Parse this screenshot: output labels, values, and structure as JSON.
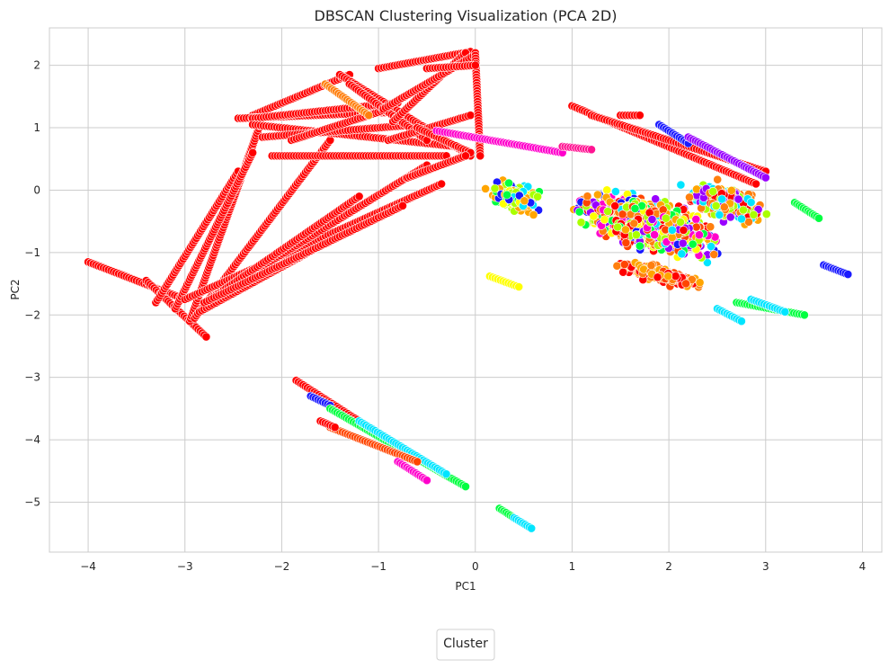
{
  "chart_data": {
    "type": "scatter",
    "title": "DBSCAN Clustering Visualization (PCA 2D)",
    "xlabel": "PC1",
    "ylabel": "PC2",
    "xlim": [
      -4.4,
      4.2
    ],
    "ylim": [
      -5.8,
      2.6
    ],
    "xticks": [
      -4,
      -3,
      -2,
      -1,
      0,
      1,
      2,
      3,
      4
    ],
    "yticks": [
      -5,
      -4,
      -3,
      -2,
      -1,
      0,
      1,
      2
    ],
    "grid": true,
    "legend": {
      "title": "Cluster",
      "placement": "bottom-center, outside plot"
    },
    "colors": {
      "red": "#ff0000",
      "orange_red": "#ff4500",
      "orange": "#ff7f0e",
      "amber": "#ffa500",
      "yellow": "#ffff00",
      "lime": "#aaff00",
      "green": "#00ff40",
      "cyan": "#00e5ff",
      "blue": "#1a1aff",
      "violet": "#9900ff",
      "magenta": "#ff00cc",
      "pink": "#ff1493"
    },
    "segments": [
      {
        "color": "red",
        "from": [
          -4.0,
          -1.15
        ],
        "to": [
          -3.0,
          -1.75
        ]
      },
      {
        "color": "red",
        "from": [
          -3.4,
          -1.45
        ],
        "to": [
          -2.78,
          -2.35
        ]
      },
      {
        "color": "red",
        "from": [
          -3.3,
          -1.8
        ],
        "to": [
          -2.45,
          0.3
        ]
      },
      {
        "color": "red",
        "from": [
          -2.95,
          -2.1
        ],
        "to": [
          -2.2,
          1.15
        ]
      },
      {
        "color": "red",
        "from": [
          -3.1,
          -1.9
        ],
        "to": [
          -2.3,
          0.6
        ]
      },
      {
        "color": "red",
        "from": [
          -2.9,
          -2.05
        ],
        "to": [
          -1.5,
          0.8
        ]
      },
      {
        "color": "red",
        "from": [
          -2.85,
          -1.95
        ],
        "to": [
          -0.9,
          -0.3
        ]
      },
      {
        "color": "red",
        "from": [
          -3.0,
          -1.75
        ],
        "to": [
          -0.35,
          0.1
        ]
      },
      {
        "color": "red",
        "from": [
          -2.7,
          -1.7
        ],
        "to": [
          -0.5,
          0.4
        ]
      },
      {
        "color": "red",
        "from": [
          -2.6,
          -1.6
        ],
        "to": [
          -1.2,
          -0.1
        ]
      },
      {
        "color": "red",
        "from": [
          -2.8,
          -1.8
        ],
        "to": [
          -0.75,
          -0.25
        ]
      },
      {
        "color": "red",
        "from": [
          -2.3,
          1.2
        ],
        "to": [
          -1.3,
          1.85
        ]
      },
      {
        "color": "red",
        "from": [
          -2.45,
          1.15
        ],
        "to": [
          -0.85,
          1.25
        ]
      },
      {
        "color": "red",
        "from": [
          -2.3,
          1.15
        ],
        "to": [
          -0.8,
          1.4
        ]
      },
      {
        "color": "red",
        "from": [
          -2.1,
          0.55
        ],
        "to": [
          -0.3,
          0.55
        ]
      },
      {
        "color": "red",
        "from": [
          -2.3,
          1.05
        ],
        "to": [
          -0.2,
          0.7
        ]
      },
      {
        "color": "red",
        "from": [
          -2.2,
          0.85
        ],
        "to": [
          -0.6,
          1.05
        ]
      },
      {
        "color": "red",
        "from": [
          -1.9,
          0.8
        ],
        "to": [
          -0.9,
          1.3
        ]
      },
      {
        "color": "red",
        "from": [
          -1.4,
          1.85
        ],
        "to": [
          -0.05,
          0.55
        ]
      },
      {
        "color": "red",
        "from": [
          -1.3,
          1.7
        ],
        "to": [
          -0.5,
          0.8
        ]
      },
      {
        "color": "red",
        "from": [
          -1.0,
          1.95
        ],
        "to": [
          -0.05,
          2.22
        ]
      },
      {
        "color": "red",
        "from": [
          -0.85,
          1.1
        ],
        "to": [
          -0.1,
          2.2
        ]
      },
      {
        "color": "red",
        "from": [
          -0.95,
          1.3
        ],
        "to": [
          -0.02,
          2.15
        ]
      },
      {
        "color": "red",
        "from": [
          -0.9,
          0.8
        ],
        "to": [
          -0.05,
          1.2
        ]
      },
      {
        "color": "red",
        "from": [
          0.0,
          2.2
        ],
        "to": [
          0.05,
          0.55
        ]
      },
      {
        "color": "red",
        "from": [
          -0.6,
          1.0
        ],
        "to": [
          -0.05,
          0.6
        ]
      },
      {
        "color": "red",
        "from": [
          -0.5,
          1.95
        ],
        "to": [
          0.0,
          2.0
        ]
      },
      {
        "color": "red",
        "from": [
          -0.7,
          0.2
        ],
        "to": [
          -0.1,
          0.55
        ]
      },
      {
        "color": "orange",
        "from": [
          -1.55,
          1.7
        ],
        "to": [
          -1.1,
          1.2
        ]
      },
      {
        "color": "red",
        "from": [
          1.0,
          1.35
        ],
        "to": [
          2.9,
          0.1
        ]
      },
      {
        "color": "red",
        "from": [
          1.2,
          1.2
        ],
        "to": [
          3.0,
          0.3
        ]
      },
      {
        "color": "red",
        "from": [
          1.5,
          1.2
        ],
        "to": [
          1.7,
          1.2
        ]
      },
      {
        "color": "blue",
        "from": [
          1.9,
          1.05
        ],
        "to": [
          2.2,
          0.75
        ]
      },
      {
        "color": "violet",
        "from": [
          2.2,
          0.85
        ],
        "to": [
          3.0,
          0.2
        ]
      },
      {
        "color": "magenta",
        "from": [
          -0.4,
          0.95
        ],
        "to": [
          0.9,
          0.6
        ]
      },
      {
        "color": "pink",
        "from": [
          0.9,
          0.7
        ],
        "to": [
          1.2,
          0.65
        ]
      },
      {
        "color": "green",
        "from": [
          3.3,
          -0.2
        ],
        "to": [
          3.55,
          -0.45
        ]
      },
      {
        "color": "blue",
        "from": [
          3.6,
          -1.2
        ],
        "to": [
          3.85,
          -1.35
        ]
      },
      {
        "color": "green",
        "from": [
          2.7,
          -1.8
        ],
        "to": [
          3.4,
          -2.0
        ]
      },
      {
        "color": "cyan",
        "from": [
          2.5,
          -1.9
        ],
        "to": [
          2.75,
          -2.1
        ]
      },
      {
        "color": "cyan",
        "from": [
          2.85,
          -1.75
        ],
        "to": [
          3.2,
          -1.95
        ]
      },
      {
        "color": "yellow",
        "from": [
          0.15,
          -1.38
        ],
        "to": [
          0.45,
          -1.55
        ]
      },
      {
        "color": "red",
        "from": [
          -1.85,
          -3.05
        ],
        "to": [
          -0.55,
          -4.35
        ]
      },
      {
        "color": "blue",
        "from": [
          -1.7,
          -3.3
        ],
        "to": [
          -1.5,
          -3.45
        ]
      },
      {
        "color": "green",
        "from": [
          -1.5,
          -3.5
        ],
        "to": [
          -0.1,
          -4.75
        ]
      },
      {
        "color": "cyan",
        "from": [
          -1.2,
          -3.7
        ],
        "to": [
          -0.3,
          -4.55
        ]
      },
      {
        "color": "orange_red",
        "from": [
          -1.5,
          -3.8
        ],
        "to": [
          -0.6,
          -4.35
        ]
      },
      {
        "color": "red",
        "from": [
          -1.6,
          -3.7
        ],
        "to": [
          -1.45,
          -3.8
        ]
      },
      {
        "color": "magenta",
        "from": [
          -0.8,
          -4.35
        ],
        "to": [
          -0.5,
          -4.65
        ]
      },
      {
        "color": "green",
        "from": [
          0.25,
          -5.1
        ],
        "to": [
          0.45,
          -5.3
        ]
      },
      {
        "color": "cyan",
        "from": [
          0.4,
          -5.25
        ],
        "to": [
          0.58,
          -5.42
        ]
      }
    ],
    "blobs": [
      {
        "center": [
          1.8,
          -0.55
        ],
        "spread": [
          0.75,
          0.45
        ],
        "count": 1400,
        "colors": [
          "orange",
          "amber",
          "red",
          "lime",
          "green",
          "cyan",
          "blue",
          "violet",
          "magenta",
          "yellow",
          "orange_red"
        ]
      },
      {
        "center": [
          2.6,
          -0.2
        ],
        "spread": [
          0.45,
          0.3
        ],
        "count": 350,
        "colors": [
          "orange",
          "red",
          "amber",
          "lime",
          "violet",
          "cyan"
        ]
      },
      {
        "center": [
          0.4,
          -0.1
        ],
        "spread": [
          0.3,
          0.25
        ],
        "count": 180,
        "colors": [
          "lime",
          "green",
          "cyan",
          "yellow",
          "blue",
          "amber"
        ]
      },
      {
        "center": [
          1.9,
          -1.35
        ],
        "spread": [
          0.5,
          0.15
        ],
        "count": 250,
        "colors": [
          "orange",
          "red",
          "amber",
          "orange_red"
        ]
      }
    ]
  }
}
